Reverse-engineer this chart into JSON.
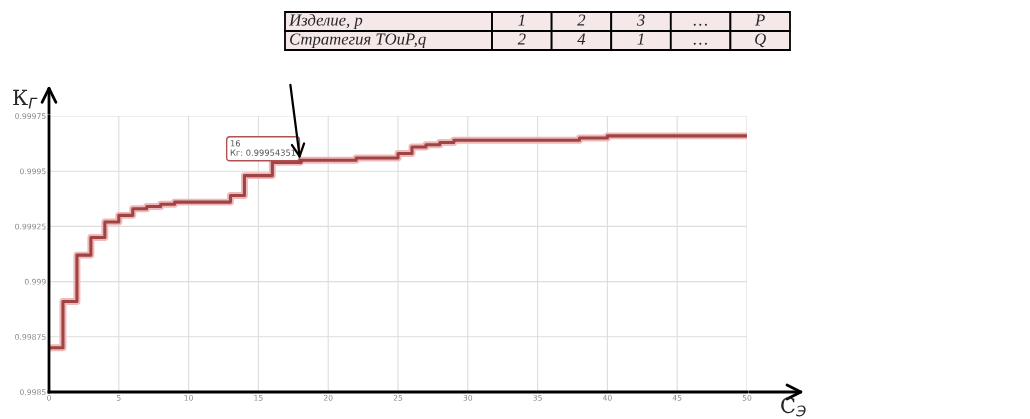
{
  "chart_data": {
    "type": "step",
    "xlabel": "С$_{Э}$",
    "ylabel": "К$_{Г}$",
    "x": [
      0,
      1,
      2,
      3,
      4,
      5,
      6,
      7,
      8,
      9,
      13,
      14,
      16,
      18,
      22,
      25,
      26,
      27,
      28,
      29,
      30,
      38,
      40,
      50
    ],
    "series": [
      {
        "color": "#9e4444",
        "values": [
          0.9987,
          0.99891,
          0.99912,
          0.9992,
          0.99927,
          0.9993,
          0.99933,
          0.99934,
          0.99935,
          0.99936,
          0.99939,
          0.99948,
          0.99954,
          0.99955,
          0.99956,
          0.99958,
          0.99961,
          0.99962,
          0.99963,
          0.99964,
          0.99964,
          0.99965,
          0.99966,
          0.99966
        ]
      }
    ],
    "xlim": [
      0,
      50
    ],
    "ylim": [
      0.9985,
      0.99975
    ],
    "xticks": [
      0,
      5,
      10,
      15,
      20,
      25,
      30,
      35,
      40,
      45,
      50
    ],
    "yticks": [
      0.9985,
      0.99875,
      0.999,
      0.99925,
      0.9995,
      0.99975
    ],
    "grid": true,
    "marker": "none",
    "line_style": "solid",
    "annotations": [
      {
        "text": "16\nКг: 0.99954351",
        "x": 18,
        "y": 0.99954351
      },
      "Изделие, p",
      "1",
      "2",
      "3",
      "…",
      "P",
      "Стратегия ТОиР,q",
      "2",
      "4",
      "1",
      "…",
      "Q"
    ]
  }
}
